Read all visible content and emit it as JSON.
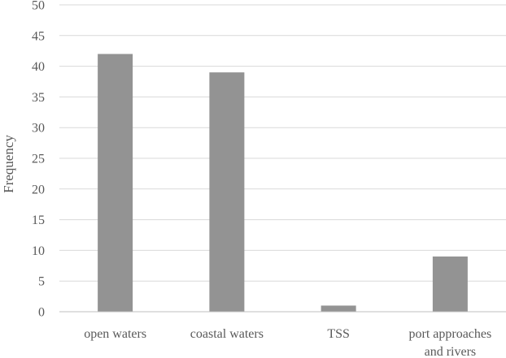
{
  "chart_data": {
    "type": "bar",
    "title": "",
    "xlabel": "",
    "ylabel": "Frequency",
    "ylim": [
      0,
      50
    ],
    "yticks": [
      0,
      5,
      10,
      15,
      20,
      25,
      30,
      35,
      40,
      45,
      50
    ],
    "grid": true,
    "legend": "none",
    "categories": [
      [
        "open waters"
      ],
      [
        "coastal waters"
      ],
      [
        "TSS"
      ],
      [
        "port approaches",
        "and rivers"
      ]
    ],
    "values": [
      42,
      39,
      1,
      9
    ],
    "bar_color": "#939393",
    "grid_color": "#d9d9d9",
    "axis_color": "#bfbfbf",
    "text_color": "#595959"
  }
}
